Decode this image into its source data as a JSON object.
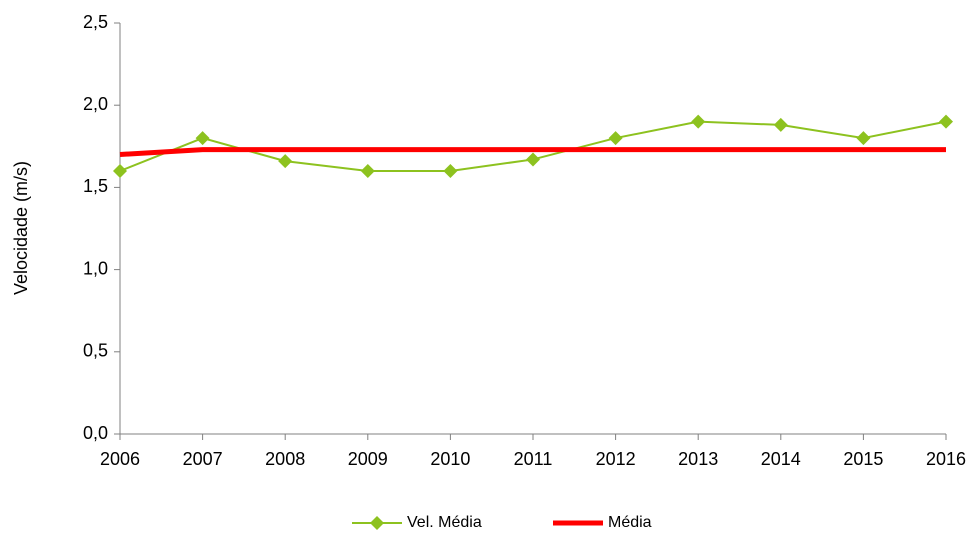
{
  "chart_data": {
    "type": "line",
    "y_label": "Velocidade (m/s)",
    "x": [
      2006,
      2007,
      2008,
      2009,
      2010,
      2011,
      2012,
      2013,
      2014,
      2015,
      2016
    ],
    "xlim": [
      2006,
      2016
    ],
    "xticks": [
      2006,
      2007,
      2008,
      2009,
      2010,
      2011,
      2012,
      2013,
      2014,
      2015,
      2016
    ],
    "ylim": [
      0,
      2.5
    ],
    "yticks": [
      {
        "value": 0,
        "label": "0,0"
      },
      {
        "value": 0.5,
        "label": "0,5"
      },
      {
        "value": 1,
        "label": "1,0"
      },
      {
        "value": 1.5,
        "label": "1,5"
      },
      {
        "value": 2,
        "label": "2,0"
      },
      {
        "value": 2.5,
        "label": "2,5"
      }
    ],
    "grid": false,
    "legend": "bottom",
    "series": [
      {
        "name": "Vel. Média",
        "color": "#8dc21f",
        "marker": "diamond",
        "values": [
          1.6,
          1.8,
          1.66,
          1.6,
          1.6,
          1.67,
          1.8,
          1.9,
          1.88,
          1.8,
          1.9
        ]
      },
      {
        "name": "Média",
        "color": "#ff0000",
        "values": [
          1.7,
          1.73,
          1.73,
          1.73,
          1.73,
          1.73,
          1.73,
          1.73,
          1.73,
          1.73,
          1.73
        ]
      }
    ]
  }
}
